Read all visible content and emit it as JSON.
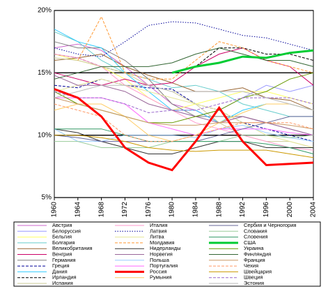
{
  "chart_data": {
    "type": "line",
    "x": [
      1960,
      1964,
      1968,
      1972,
      1976,
      1980,
      1984,
      1988,
      1992,
      1996,
      2000,
      2004
    ],
    "xlim": [
      1960,
      2004
    ],
    "xticks": [
      1960,
      1964,
      1968,
      1972,
      1976,
      1980,
      1984,
      1988,
      1992,
      1996,
      2000,
      2004
    ],
    "ylim": [
      5,
      20
    ],
    "yticks": [
      {
        "value": 5,
        "label": "5%"
      },
      {
        "value": 10,
        "label": "10%"
      },
      {
        "value": 15,
        "label": "15%"
      },
      {
        "value": 20,
        "label": "20%"
      }
    ],
    "grid": true,
    "series": [
      {
        "name": "Австрия",
        "color": "#cc66cc",
        "values": [
          17,
          17.3,
          16.8,
          15.5,
          14,
          12.5,
          12,
          11,
          11.5,
          11,
          10.5,
          10
        ]
      },
      {
        "name": "Белоруссия",
        "color": "#9999ff",
        "values": [
          null,
          null,
          null,
          null,
          null,
          12,
          11.5,
          12,
          13,
          14,
          13.5,
          14
        ]
      },
      {
        "name": "Бельгия",
        "color": "#ffff66",
        "values": [
          16.5,
          16,
          15.5,
          14.5,
          13,
          12,
          12.5,
          13,
          13.5,
          13.5,
          13,
          12.5
        ]
      },
      {
        "name": "Болгария",
        "color": "#66cccc",
        "values": [
          18.3,
          17.5,
          16,
          15,
          14.5,
          13.8,
          14,
          13.5,
          12.5,
          12,
          11.5,
          11.5
        ]
      },
      {
        "name": "Великобритания",
        "color": "#996633",
        "values": [
          16,
          16.2,
          16.5,
          15.5,
          14.8,
          14.2,
          13.5,
          13.5,
          13.8,
          13,
          12.8,
          12
        ]
      },
      {
        "name": "Венгрия",
        "color": "#cc0066",
        "values": [
          15,
          14.5,
          14,
          14.5,
          14,
          14.2,
          15.5,
          16.5,
          17,
          16,
          15.5,
          14
        ]
      },
      {
        "name": "Германия",
        "color": "#808080",
        "values": [
          17.5,
          17,
          17,
          16,
          14.5,
          12.5,
          11.5,
          11.5,
          11.5,
          11,
          10.5,
          10
        ]
      },
      {
        "name": "Греция",
        "color": "#000099",
        "dashed": true,
        "values": [
          14,
          13.8,
          14.5,
          14,
          13.8,
          13.7,
          12.5,
          12,
          11,
          10.5,
          10,
          9.5
        ]
      },
      {
        "name": "Дания",
        "color": "#33ccff",
        "values": [
          18.5,
          17.5,
          17,
          15,
          13.5,
          12,
          12,
          11,
          12,
          12.5,
          12.5,
          12
        ]
      },
      {
        "name": "Ирландия",
        "color": "#000000",
        "dashed": true,
        "values": [
          16.5,
          16.2,
          15.5,
          15,
          15,
          15,
          15.5,
          17,
          17,
          16.5,
          16.5,
          16
        ]
      },
      {
        "name": "Испания",
        "color": "#cccc99",
        "values": [
          16.2,
          16,
          15.5,
          15,
          14,
          13.5,
          12.5,
          11,
          10,
          9.5,
          9.5,
          9
        ]
      },
      {
        "name": "Италия",
        "color": "#ff99cc",
        "values": [
          16.5,
          16.2,
          15.5,
          14,
          13,
          12,
          11,
          10.5,
          10,
          9.5,
          9,
          8.8
        ]
      },
      {
        "name": "Латвия",
        "color": "#000099",
        "dotted": true,
        "values": [
          17,
          16.5,
          16.3,
          17.5,
          18.8,
          19.1,
          19,
          18.5,
          18,
          17.8,
          17.3,
          16.8
        ]
      },
      {
        "name": "Литва",
        "color": "#e6e699",
        "values": [
          13.5,
          14,
          14.5,
          14,
          13.5,
          13,
          12.5,
          12,
          11,
          10,
          9.5,
          9
        ]
      },
      {
        "name": "Молдавия",
        "color": "#ff9933",
        "dashed": true,
        "values": [
          null,
          16,
          19.5,
          15,
          14.5,
          14.5,
          16,
          17.5,
          17,
          16,
          15.5,
          15
        ]
      },
      {
        "name": "Нидерланды",
        "color": "#333333",
        "values": [
          10.5,
          10.2,
          9.5,
          9,
          8.5,
          8.5,
          9,
          9.5,
          9.5,
          9,
          9,
          9
        ]
      },
      {
        "name": "Норвегия",
        "color": "#996699",
        "values": [
          14.8,
          14,
          14,
          13.5,
          12.5,
          12,
          11.5,
          11,
          11.5,
          11,
          10.5,
          10
        ]
      },
      {
        "name": "Польша",
        "color": "#99ccff",
        "values": [
          10.5,
          9.5,
          9.5,
          10,
          10,
          10,
          9.8,
          10.5,
          10.8,
          10.2,
          9.8,
          9.5
        ]
      },
      {
        "name": "Португалия",
        "color": "#ff66ff",
        "values": [
          13,
          13,
          13,
          12.5,
          11,
          10.5,
          10,
          10.5,
          10.5,
          10.5,
          10.2,
          10
        ]
      },
      {
        "name": "Россия",
        "color": "#ff0000",
        "bold": true,
        "values": [
          13.7,
          13,
          11.5,
          9,
          7.8,
          7.2,
          9.5,
          12.2,
          9.5,
          7.6,
          7.7,
          7.8
        ]
      },
      {
        "name": "Румыния",
        "color": "#ffcc66",
        "values": [
          12,
          12.5,
          12.5,
          11.5,
          10,
          9.5,
          10,
          11,
          11.8,
          12.5,
          12.5,
          12
        ]
      },
      {
        "name": "Сербия и Черногория",
        "color": "#666699",
        "values": [
          10,
          9.8,
          9.5,
          9.5,
          9.5,
          9.5,
          9.5,
          10,
          10.5,
          11,
          11.5,
          11.5
        ]
      },
      {
        "name": "Словакия",
        "color": "#99cc99",
        "values": [
          9.5,
          9.5,
          9,
          9,
          9,
          9.5,
          9.5,
          9.5,
          10,
          10,
          9.8,
          10
        ]
      },
      {
        "name": "Словения",
        "color": "#339966",
        "values": [
          10.5,
          10.5,
          10.5,
          10,
          9.5,
          9.5,
          9.5,
          9.5,
          9.5,
          9.3,
          9,
          8.5
        ]
      },
      {
        "name": "США",
        "color": "#00cc33",
        "bold": true,
        "values": [
          null,
          null,
          null,
          null,
          null,
          15,
          15.5,
          15.8,
          16.3,
          16.2,
          16.6,
          16.8
        ]
      },
      {
        "name": "Украина",
        "color": "#669900",
        "values": [
          13.5,
          12.5,
          12,
          11.5,
          11,
          11,
          11.5,
          12,
          13,
          13.5,
          14.5,
          15
        ]
      },
      {
        "name": "Финляндия",
        "color": "#336633",
        "values": [
          14.5,
          15,
          15.5,
          15.5,
          15.5,
          15.8,
          16.5,
          17,
          16.5,
          16,
          16,
          15.5
        ]
      },
      {
        "name": "Франция",
        "color": "#cc9966",
        "values": [
          13,
          12.5,
          12,
          11.5,
          11,
          10.8,
          10.8,
          11,
          11,
          11,
          10.8,
          10.5
        ]
      },
      {
        "name": "Чехия",
        "color": "#ff9966",
        "dashed": true,
        "values": [
          12.5,
          12,
          11.5,
          10,
          9.5,
          9.5,
          10,
          10.5,
          11,
          11,
          11,
          10.5
        ]
      },
      {
        "name": "Швейцария",
        "color": "#cc9900",
        "values": [
          10,
          10,
          9.8,
          9.5,
          9,
          8.8,
          8.7,
          8.8,
          8.8,
          8.8,
          8.5,
          8.2
        ]
      },
      {
        "name": "Швеция",
        "color": "#9966cc",
        "dashed": true,
        "values": [
          13.5,
          13,
          13,
          12.5,
          11.8,
          12,
          12,
          12.5,
          13,
          13,
          13,
          12.5
        ]
      },
      {
        "name": "Эстония",
        "color": "#bbbbbb",
        "values": [
          13,
          13.5,
          14,
          14,
          14,
          13.5,
          13.5,
          13.5,
          13.5,
          13,
          12.5,
          12
        ]
      }
    ]
  }
}
